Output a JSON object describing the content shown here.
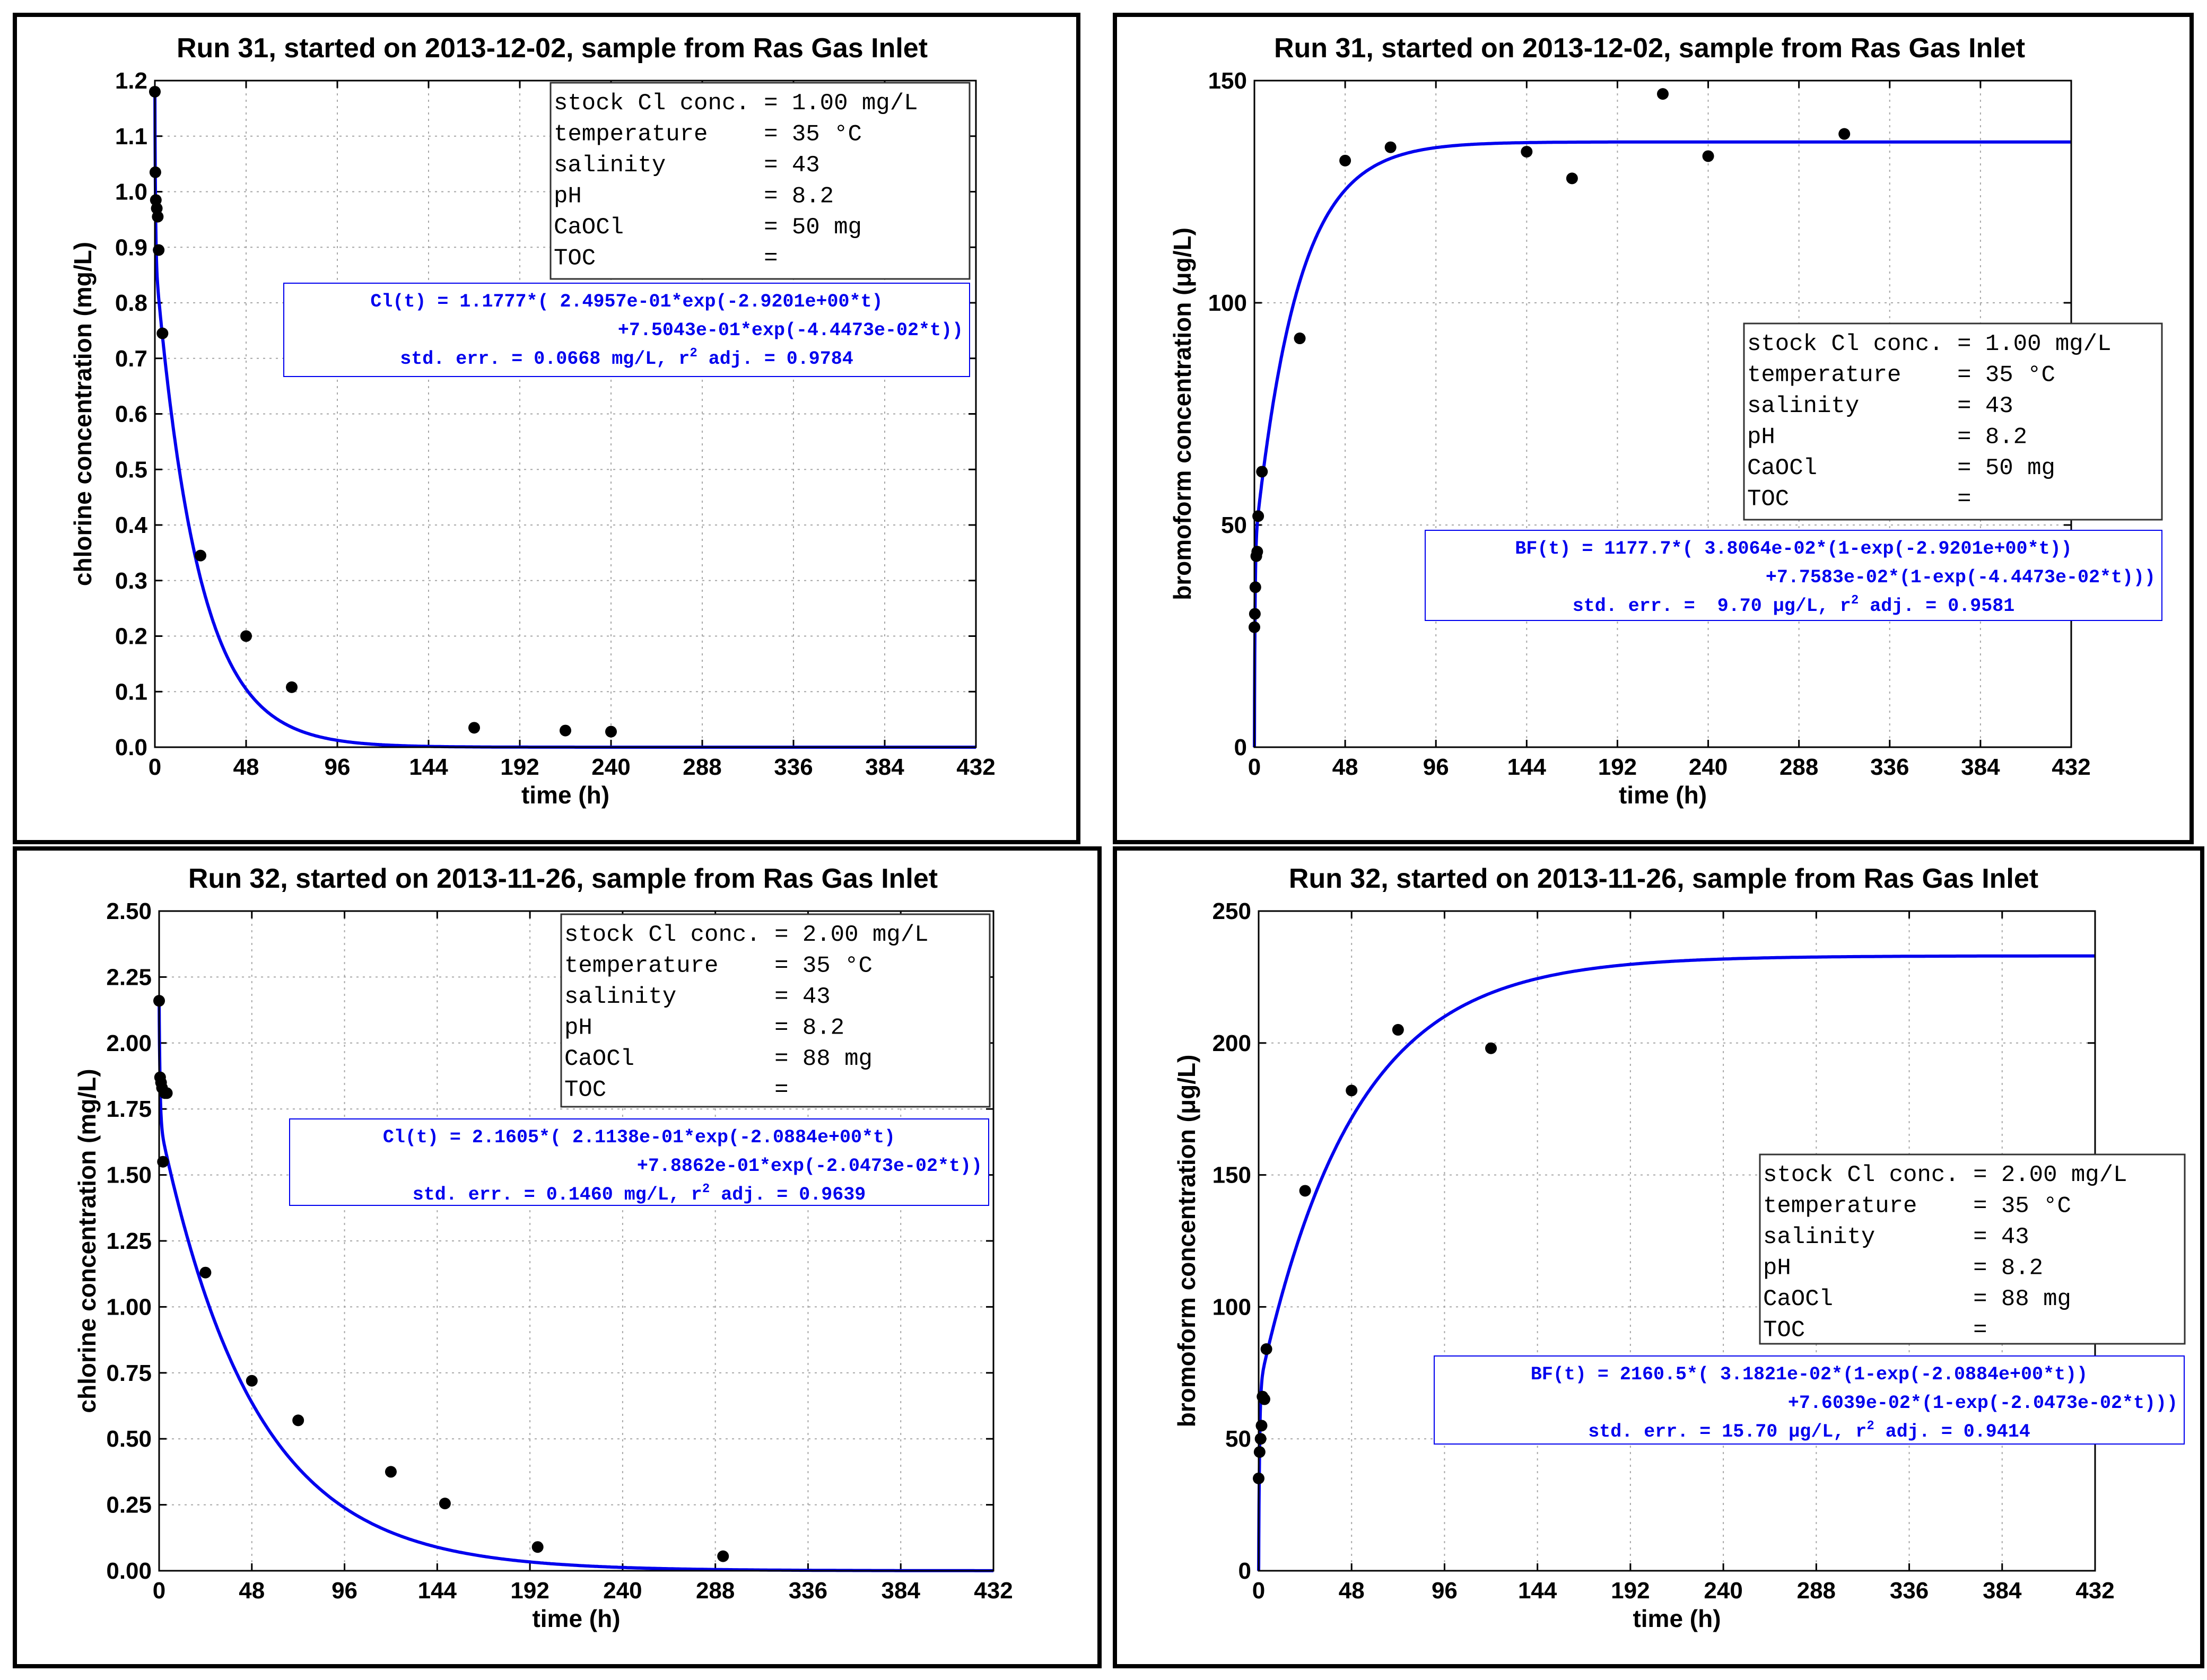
{
  "chart_data": [
    {
      "type": "scatter",
      "title": "Run 31, started on 2013-12-02, sample from Ras Gas Inlet",
      "xlabel": "time (h)",
      "ylabel": "chlorine concentration (mg/L)",
      "xlim": [
        0,
        432
      ],
      "ylim": [
        0,
        1.2
      ],
      "xticks": [
        0,
        48,
        96,
        144,
        192,
        240,
        288,
        336,
        384,
        432
      ],
      "xtick_labels": [
        "0",
        "48",
        "96",
        "144",
        "192",
        "240",
        "288",
        "336",
        "384",
        "432"
      ],
      "yticks": [
        0,
        0.1,
        0.2,
        0.3,
        0.4,
        0.5,
        0.6,
        0.7,
        0.8,
        0.9,
        1.0,
        1.1,
        1.2
      ],
      "ytick_labels": [
        "0.0",
        "0.1",
        "0.2",
        "0.3",
        "0.4",
        "0.5",
        "0.6",
        "0.7",
        "0.8",
        "0.9",
        "1.0",
        "1.1",
        "1.2"
      ],
      "grid": true,
      "series": [
        {
          "name": "measured",
          "x": [
            0,
            0.25,
            0.5,
            1,
            1.5,
            2,
            4,
            24,
            48,
            72,
            168,
            216,
            240
          ],
          "y": [
            1.18,
            1.035,
            0.985,
            0.97,
            0.955,
            0.895,
            0.745,
            0.345,
            0.2,
            0.108,
            0.035,
            0.03,
            0.028
          ]
        },
        {
          "name": "fit",
          "model": "chlorine",
          "params": {
            "c0": 1.1777,
            "a1": 0.24957,
            "k1": 2.9201,
            "a2": 0.75043,
            "k2": 0.044473
          },
          "x_range": [
            0,
            432
          ]
        }
      ],
      "info_box": {
        "position": "top-right",
        "lines": [
          "stock Cl conc. = 1.00 mg/L",
          "temperature    = 35 °C",
          "salinity       = 43",
          "pH             = 8.2",
          "CaOCl          = 50 mg",
          "TOC            ="
        ]
      },
      "fit_box": {
        "lines": [
          "Cl(t) = 1.1777*( 2.4957e-01*exp(-2.9201e+00*t)",
          "+7.5043e-01*exp(-4.4473e-02*t))",
          "std. err. = 0.0668 mg/L, r² adj. = 0.9784"
        ]
      }
    },
    {
      "type": "scatter",
      "title": "Run 31, started on 2013-12-02, sample from Ras Gas Inlet",
      "xlabel": "time (h)",
      "ylabel": "bromoform concentration (μg/L)",
      "xlim": [
        0,
        432
      ],
      "ylim": [
        0,
        150
      ],
      "xticks": [
        0,
        48,
        96,
        144,
        192,
        240,
        288,
        336,
        384,
        432
      ],
      "xtick_labels": [
        "0",
        "48",
        "96",
        "144",
        "192",
        "240",
        "288",
        "336",
        "384",
        "432"
      ],
      "yticks": [
        0,
        50,
        100,
        150
      ],
      "ytick_labels": [
        "0",
        "50",
        "100",
        "150"
      ],
      "grid": true,
      "series": [
        {
          "name": "measured",
          "x": [
            0,
            0.25,
            0.5,
            1,
            1.5,
            2,
            4,
            24,
            48,
            72,
            144,
            168,
            216,
            240,
            312
          ],
          "y": [
            27,
            30,
            36,
            43,
            44,
            52,
            62,
            92,
            132,
            135,
            134,
            128,
            147,
            133,
            138
          ]
        },
        {
          "name": "fit",
          "model": "bromoform",
          "params": {
            "b0": 1177.7,
            "a1": 0.038064,
            "k1": 2.9201,
            "a2": 0.077583,
            "k2": 0.044473
          },
          "x_range": [
            0,
            432
          ]
        }
      ],
      "info_box": {
        "position": "right",
        "lines": [
          "stock Cl conc. = 1.00 mg/L",
          "temperature    = 35 °C",
          "salinity       = 43",
          "pH             = 8.2",
          "CaOCl          = 50 mg",
          "TOC            ="
        ]
      },
      "fit_box": {
        "lines": [
          "BF(t) = 1177.7*( 3.8064e-02*(1-exp(-2.9201e+00*t))",
          "+7.7583e-02*(1-exp(-4.4473e-02*t)))",
          "std. err. =  9.70 μg/L, r² adj. = 0.9581"
        ]
      }
    },
    {
      "type": "scatter",
      "title": "Run 32, started on 2013-11-26, sample from Ras Gas Inlet",
      "xlabel": "time (h)",
      "ylabel": "chlorine concentration (mg/L)",
      "xlim": [
        0,
        432
      ],
      "ylim": [
        0,
        2.5
      ],
      "xticks": [
        0,
        48,
        96,
        144,
        192,
        240,
        288,
        336,
        384,
        432
      ],
      "xtick_labels": [
        "0",
        "48",
        "96",
        "144",
        "192",
        "240",
        "288",
        "336",
        "384",
        "432"
      ],
      "yticks": [
        0,
        0.25,
        0.5,
        0.75,
        1.0,
        1.25,
        1.5,
        1.75,
        2.0,
        2.25,
        2.5
      ],
      "ytick_labels": [
        "0.00",
        "0.25",
        "0.50",
        "0.75",
        "1.00",
        "1.25",
        "1.50",
        "1.75",
        "2.00",
        "2.25",
        "2.50"
      ],
      "grid": true,
      "series": [
        {
          "name": "measured",
          "x": [
            0,
            0.5,
            1,
            1.5,
            2,
            3,
            4,
            24,
            48,
            72,
            120,
            148,
            196,
            292
          ],
          "y": [
            2.16,
            1.87,
            1.85,
            1.83,
            1.55,
            1.81,
            1.81,
            1.13,
            0.72,
            0.57,
            0.375,
            0.255,
            0.09,
            0.055
          ]
        },
        {
          "name": "fit",
          "model": "chlorine",
          "params": {
            "c0": 2.1605,
            "a1": 0.21138,
            "k1": 2.0884,
            "a2": 0.78862,
            "k2": 0.020473
          },
          "x_range": [
            0,
            432
          ]
        }
      ],
      "info_box": {
        "position": "top-right",
        "lines": [
          "stock Cl conc. = 2.00 mg/L",
          "temperature    = 35 °C",
          "salinity       = 43",
          "pH             = 8.2",
          "CaOCl          = 88 mg",
          "TOC            ="
        ]
      },
      "fit_box": {
        "lines": [
          "Cl(t) = 2.1605*( 2.1138e-01*exp(-2.0884e+00*t)",
          "+7.8862e-01*exp(-2.0473e-02*t))",
          "std. err. = 0.1460 mg/L, r² adj. = 0.9639"
        ]
      }
    },
    {
      "type": "scatter",
      "title": "Run 32, started on 2013-11-26, sample from Ras Gas Inlet",
      "xlabel": "time (h)",
      "ylabel": "bromoform concentration (μg/L)",
      "xlim": [
        0,
        432
      ],
      "ylim": [
        0,
        250
      ],
      "xticks": [
        0,
        48,
        96,
        144,
        192,
        240,
        288,
        336,
        384,
        432
      ],
      "xtick_labels": [
        "0",
        "48",
        "96",
        "144",
        "192",
        "240",
        "288",
        "336",
        "384",
        "432"
      ],
      "yticks": [
        0,
        50,
        100,
        150,
        200,
        250
      ],
      "ytick_labels": [
        "0",
        "50",
        "100",
        "150",
        "200",
        "250"
      ],
      "grid": true,
      "series": [
        {
          "name": "measured",
          "x": [
            0,
            0.5,
            1,
            1.5,
            2,
            3,
            4,
            24,
            48,
            72,
            120
          ],
          "y": [
            35,
            45,
            50,
            55,
            66,
            65,
            84,
            144,
            182,
            205,
            198
          ]
        },
        {
          "name": "fit",
          "model": "bromoform",
          "params": {
            "b0": 2160.5,
            "a1": 0.031821,
            "k1": 2.0884,
            "a2": 0.076039,
            "k2": 0.020473
          },
          "x_range": [
            0,
            432
          ]
        }
      ],
      "info_box": {
        "position": "right",
        "lines": [
          "stock Cl conc. = 2.00 mg/L",
          "temperature    = 35 °C",
          "salinity       = 43",
          "pH             = 8.2",
          "CaOCl          = 88 mg",
          "TOC            ="
        ]
      },
      "fit_box": {
        "lines": [
          "BF(t) = 2160.5*( 3.1821e-02*(1-exp(-2.0884e+00*t))",
          "+7.6039e-02*(1-exp(-2.0473e-02*t)))",
          "std. err. = 15.70 μg/L, r² adj. = 0.9414"
        ]
      }
    }
  ]
}
